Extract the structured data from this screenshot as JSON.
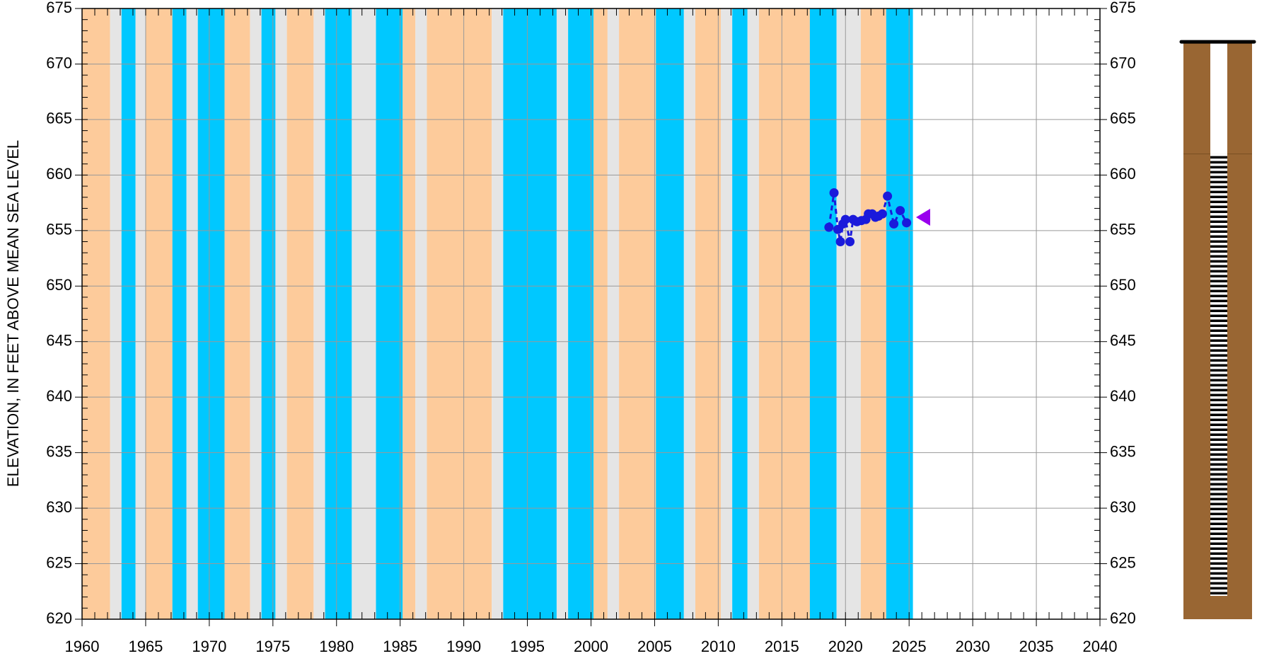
{
  "chart_data": {
    "type": "line",
    "y_label": "ELEVATION, IN FEET ABOVE MEAN SEA LEVEL",
    "xlim": [
      1960,
      2040
    ],
    "xticks": [
      1960,
      1965,
      1970,
      1975,
      1980,
      1985,
      1990,
      1995,
      2000,
      2005,
      2010,
      2015,
      2020,
      2025,
      2030,
      2035,
      2040
    ],
    "ylim": [
      620,
      675
    ],
    "yticks": [
      620,
      625,
      630,
      635,
      640,
      645,
      650,
      655,
      660,
      665,
      670,
      675
    ],
    "grid": true,
    "bands": [
      {
        "start": 1960,
        "end": 1962.2,
        "color": "#fdcb9b"
      },
      {
        "start": 1962.2,
        "end": 1963.1,
        "color": "#e5e5e5"
      },
      {
        "start": 1963.1,
        "end": 1964.2,
        "color": "#00c8ff"
      },
      {
        "start": 1964.2,
        "end": 1965.0,
        "color": "#e5e5e5"
      },
      {
        "start": 1965.0,
        "end": 1967.1,
        "color": "#fdcb9b"
      },
      {
        "start": 1967.1,
        "end": 1968.2,
        "color": "#00c8ff"
      },
      {
        "start": 1968.2,
        "end": 1969.1,
        "color": "#e5e5e5"
      },
      {
        "start": 1969.1,
        "end": 1971.2,
        "color": "#00c8ff"
      },
      {
        "start": 1971.2,
        "end": 1973.2,
        "color": "#fdcb9b"
      },
      {
        "start": 1973.2,
        "end": 1974.1,
        "color": "#e5e5e5"
      },
      {
        "start": 1974.1,
        "end": 1975.2,
        "color": "#00c8ff"
      },
      {
        "start": 1975.2,
        "end": 1976.1,
        "color": "#e5e5e5"
      },
      {
        "start": 1976.1,
        "end": 1978.2,
        "color": "#fdcb9b"
      },
      {
        "start": 1978.2,
        "end": 1979.1,
        "color": "#e5e5e5"
      },
      {
        "start": 1979.1,
        "end": 1981.2,
        "color": "#00c8ff"
      },
      {
        "start": 1981.2,
        "end": 1983.1,
        "color": "#e5e5e5"
      },
      {
        "start": 1983.1,
        "end": 1985.2,
        "color": "#00c8ff"
      },
      {
        "start": 1985.2,
        "end": 1986.2,
        "color": "#fdcb9b"
      },
      {
        "start": 1986.2,
        "end": 1987.1,
        "color": "#e5e5e5"
      },
      {
        "start": 1987.1,
        "end": 1992.2,
        "color": "#fdcb9b"
      },
      {
        "start": 1992.2,
        "end": 1993.1,
        "color": "#e5e5e5"
      },
      {
        "start": 1993.1,
        "end": 1997.3,
        "color": "#00c8ff"
      },
      {
        "start": 1997.3,
        "end": 1998.2,
        "color": "#e5e5e5"
      },
      {
        "start": 1998.2,
        "end": 2000.2,
        "color": "#00c8ff"
      },
      {
        "start": 2000.2,
        "end": 2001.3,
        "color": "#fdcb9b"
      },
      {
        "start": 2001.3,
        "end": 2002.2,
        "color": "#e5e5e5"
      },
      {
        "start": 2002.2,
        "end": 2005.1,
        "color": "#fdcb9b"
      },
      {
        "start": 2005.1,
        "end": 2007.3,
        "color": "#00c8ff"
      },
      {
        "start": 2007.3,
        "end": 2008.2,
        "color": "#e5e5e5"
      },
      {
        "start": 2008.2,
        "end": 2010.2,
        "color": "#fdcb9b"
      },
      {
        "start": 2010.2,
        "end": 2011.1,
        "color": "#e5e5e5"
      },
      {
        "start": 2011.1,
        "end": 2012.3,
        "color": "#00c8ff"
      },
      {
        "start": 2012.3,
        "end": 2013.2,
        "color": "#e5e5e5"
      },
      {
        "start": 2013.2,
        "end": 2017.2,
        "color": "#fdcb9b"
      },
      {
        "start": 2017.2,
        "end": 2019.3,
        "color": "#00c8ff"
      },
      {
        "start": 2019.3,
        "end": 2021.2,
        "color": "#e5e5e5"
      },
      {
        "start": 2021.2,
        "end": 2023.2,
        "color": "#fdcb9b"
      },
      {
        "start": 2023.2,
        "end": 2025.3,
        "color": "#00c8ff"
      }
    ],
    "x": [
      2018.7,
      2019.1,
      2019.4,
      2019.6,
      2019.8,
      2020.0,
      2020.35,
      2020.6,
      2020.9,
      2021.25,
      2021.6,
      2021.8,
      2022.1,
      2022.35,
      2022.6,
      2022.9,
      2023.3,
      2023.8,
      2024.3,
      2024.8
    ],
    "series": [
      {
        "color": "#1a1adb",
        "values": [
          655.3,
          658.4,
          655.1,
          654.0,
          655.6,
          656.0,
          654.0,
          656.0,
          655.8,
          655.9,
          656.0,
          656.5,
          656.5,
          656.2,
          656.3,
          656.5,
          658.1,
          655.6,
          656.8,
          655.7
        ]
      }
    ],
    "marker": {
      "value": 656.2,
      "color": "#9900ee"
    },
    "well": {
      "casing_top": 672.0,
      "land_surface": 661.9,
      "screen_top": 661.9,
      "screen_bottom": 622.1,
      "bottom": 620
    }
  }
}
